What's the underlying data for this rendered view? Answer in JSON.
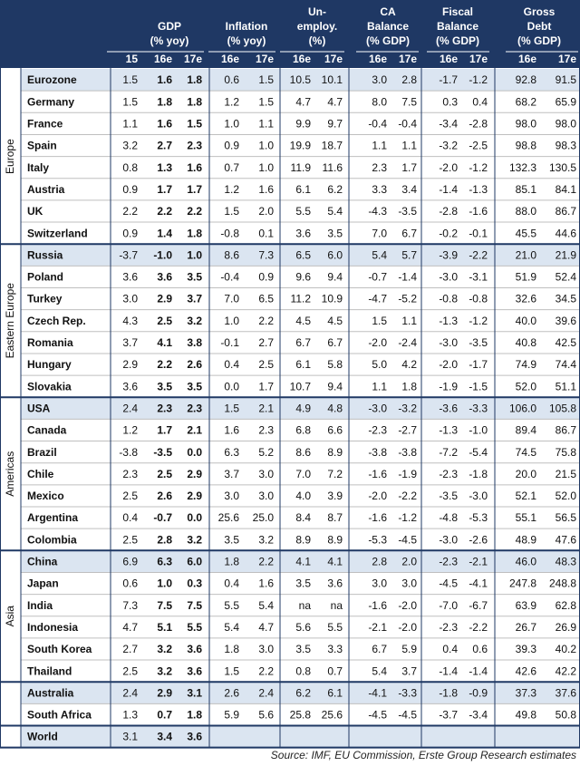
{
  "header": {
    "groups": [
      {
        "lines": [
          "GDP",
          "(% yoy)"
        ]
      },
      {
        "lines": [
          "Inflation",
          "(% yoy)"
        ]
      },
      {
        "lines": [
          "Un-",
          "employ.",
          "(%)"
        ]
      },
      {
        "lines": [
          "CA",
          "Balance",
          "(% GDP)"
        ]
      },
      {
        "lines": [
          "Fiscal",
          "Balance",
          "(% GDP)"
        ]
      },
      {
        "lines": [
          "Gross",
          "Debt",
          "(% GDP)"
        ]
      }
    ],
    "subheaders": [
      "15",
      "16e",
      "17e",
      "16e",
      "17e",
      "16e",
      "17e",
      "16e",
      "17e",
      "16e",
      "17e",
      "16e",
      "17e"
    ]
  },
  "groups": [
    {
      "label": "Europe",
      "rows": [
        [
          "Eurozone",
          "1.5",
          "1.6",
          "1.8",
          "0.6",
          "1.5",
          "10.5",
          "10.1",
          "3.0",
          "2.8",
          "-1.7",
          "-1.2",
          "92.8",
          "91.5"
        ],
        [
          "Germany",
          "1.5",
          "1.8",
          "1.8",
          "1.2",
          "1.5",
          "4.7",
          "4.7",
          "8.0",
          "7.5",
          "0.3",
          "0.4",
          "68.2",
          "65.9"
        ],
        [
          "France",
          "1.1",
          "1.6",
          "1.5",
          "1.0",
          "1.1",
          "9.9",
          "9.7",
          "-0.4",
          "-0.4",
          "-3.4",
          "-2.8",
          "98.0",
          "98.0"
        ],
        [
          "Spain",
          "3.2",
          "2.7",
          "2.3",
          "0.9",
          "1.0",
          "19.9",
          "18.7",
          "1.1",
          "1.1",
          "-3.2",
          "-2.5",
          "98.8",
          "98.3"
        ],
        [
          "Italy",
          "0.8",
          "1.3",
          "1.6",
          "0.7",
          "1.0",
          "11.9",
          "11.6",
          "2.3",
          "1.7",
          "-2.0",
          "-1.2",
          "132.3",
          "130.5"
        ],
        [
          "Austria",
          "0.9",
          "1.7",
          "1.7",
          "1.2",
          "1.6",
          "6.1",
          "6.2",
          "3.3",
          "3.4",
          "-1.4",
          "-1.3",
          "85.1",
          "84.1"
        ],
        [
          "UK",
          "2.2",
          "2.2",
          "2.2",
          "1.5",
          "2.0",
          "5.5",
          "5.4",
          "-4.3",
          "-3.5",
          "-2.8",
          "-1.6",
          "88.0",
          "86.7"
        ],
        [
          "Switzerland",
          "0.9",
          "1.4",
          "1.8",
          "-0.8",
          "0.1",
          "3.6",
          "3.5",
          "7.0",
          "6.7",
          "-0.2",
          "-0.1",
          "45.5",
          "44.6"
        ]
      ]
    },
    {
      "label": "Eastern Europe",
      "rows": [
        [
          "Russia",
          "-3.7",
          "-1.0",
          "1.0",
          "8.6",
          "7.3",
          "6.5",
          "6.0",
          "5.4",
          "5.7",
          "-3.9",
          "-2.2",
          "21.0",
          "21.9"
        ],
        [
          "Poland",
          "3.6",
          "3.6",
          "3.5",
          "-0.4",
          "0.9",
          "9.6",
          "9.4",
          "-0.7",
          "-1.4",
          "-3.0",
          "-3.1",
          "51.9",
          "52.4"
        ],
        [
          "Turkey",
          "3.0",
          "2.9",
          "3.7",
          "7.0",
          "6.5",
          "11.2",
          "10.9",
          "-4.7",
          "-5.2",
          "-0.8",
          "-0.8",
          "32.6",
          "34.5"
        ],
        [
          "Czech Rep.",
          "4.3",
          "2.5",
          "3.2",
          "1.0",
          "2.2",
          "4.5",
          "4.5",
          "1.5",
          "1.1",
          "-1.3",
          "-1.2",
          "40.0",
          "39.6"
        ],
        [
          "Romania",
          "3.7",
          "4.1",
          "3.8",
          "-0.1",
          "2.7",
          "6.7",
          "6.7",
          "-2.0",
          "-2.4",
          "-3.0",
          "-3.5",
          "40.8",
          "42.5"
        ],
        [
          "Hungary",
          "2.9",
          "2.2",
          "2.6",
          "0.4",
          "2.5",
          "6.1",
          "5.8",
          "5.0",
          "4.2",
          "-2.0",
          "-1.7",
          "74.9",
          "74.4"
        ],
        [
          "Slovakia",
          "3.6",
          "3.5",
          "3.5",
          "0.0",
          "1.7",
          "10.7",
          "9.4",
          "1.1",
          "1.8",
          "-1.9",
          "-1.5",
          "52.0",
          "51.1"
        ]
      ]
    },
    {
      "label": "Americas",
      "rows": [
        [
          "USA",
          "2.4",
          "2.3",
          "2.3",
          "1.5",
          "2.1",
          "4.9",
          "4.8",
          "-3.0",
          "-3.2",
          "-3.6",
          "-3.3",
          "106.0",
          "105.8"
        ],
        [
          "Canada",
          "1.2",
          "1.7",
          "2.1",
          "1.6",
          "2.3",
          "6.8",
          "6.6",
          "-2.3",
          "-2.7",
          "-1.3",
          "-1.0",
          "89.4",
          "86.7"
        ],
        [
          "Brazil",
          "-3.8",
          "-3.5",
          "0.0",
          "6.3",
          "5.2",
          "8.6",
          "8.9",
          "-3.8",
          "-3.8",
          "-7.2",
          "-5.4",
          "74.5",
          "75.8"
        ],
        [
          "Chile",
          "2.3",
          "2.5",
          "2.9",
          "3.7",
          "3.0",
          "7.0",
          "7.2",
          "-1.6",
          "-1.9",
          "-2.3",
          "-1.8",
          "20.0",
          "21.5"
        ],
        [
          "Mexico",
          "2.5",
          "2.6",
          "2.9",
          "3.0",
          "3.0",
          "4.0",
          "3.9",
          "-2.0",
          "-2.2",
          "-3.5",
          "-3.0",
          "52.1",
          "52.0"
        ],
        [
          "Argentina",
          "0.4",
          "-0.7",
          "0.0",
          "25.6",
          "25.0",
          "8.4",
          "8.7",
          "-1.6",
          "-1.2",
          "-4.8",
          "-5.3",
          "55.1",
          "56.5"
        ],
        [
          "Colombia",
          "2.5",
          "2.8",
          "3.2",
          "3.5",
          "3.2",
          "8.9",
          "8.9",
          "-5.3",
          "-4.5",
          "-3.0",
          "-2.6",
          "48.9",
          "47.6"
        ]
      ]
    },
    {
      "label": "Asia",
      "rows": [
        [
          "China",
          "6.9",
          "6.3",
          "6.0",
          "1.8",
          "2.2",
          "4.1",
          "4.1",
          "2.8",
          "2.0",
          "-2.3",
          "-2.1",
          "46.0",
          "48.3"
        ],
        [
          "Japan",
          "0.6",
          "1.0",
          "0.3",
          "0.4",
          "1.6",
          "3.5",
          "3.6",
          "3.0",
          "3.0",
          "-4.5",
          "-4.1",
          "247.8",
          "248.8"
        ],
        [
          "India",
          "7.3",
          "7.5",
          "7.5",
          "5.5",
          "5.4",
          "na",
          "na",
          "-1.6",
          "-2.0",
          "-7.0",
          "-6.7",
          "63.9",
          "62.8"
        ],
        [
          "Indonesia",
          "4.7",
          "5.1",
          "5.5",
          "5.4",
          "4.7",
          "5.6",
          "5.5",
          "-2.1",
          "-2.0",
          "-2.3",
          "-2.2",
          "26.7",
          "26.9"
        ],
        [
          "South Korea",
          "2.7",
          "3.2",
          "3.6",
          "1.8",
          "3.0",
          "3.5",
          "3.3",
          "6.7",
          "5.9",
          "0.4",
          "0.6",
          "39.3",
          "40.2"
        ],
        [
          "Thailand",
          "2.5",
          "3.2",
          "3.6",
          "1.5",
          "2.2",
          "0.8",
          "0.7",
          "5.4",
          "3.7",
          "-1.4",
          "-1.4",
          "42.6",
          "42.2"
        ]
      ]
    },
    {
      "rows": [
        [
          "Australia",
          "2.4",
          "2.9",
          "3.1",
          "2.6",
          "2.4",
          "6.2",
          "6.1",
          "-4.1",
          "-3.3",
          "-1.8",
          "-0.9",
          "37.3",
          "37.6"
        ],
        [
          "South Africa",
          "1.3",
          "0.7",
          "1.8",
          "5.9",
          "5.6",
          "25.8",
          "25.6",
          "-4.5",
          "-4.5",
          "-3.7",
          "-3.4",
          "49.8",
          "50.8"
        ]
      ]
    },
    {
      "rows": [
        [
          "World",
          "3.1",
          "3.4",
          "3.6"
        ]
      ]
    }
  ],
  "source": "Source: IMF, EU Commission, Erste Group Research estimates"
}
